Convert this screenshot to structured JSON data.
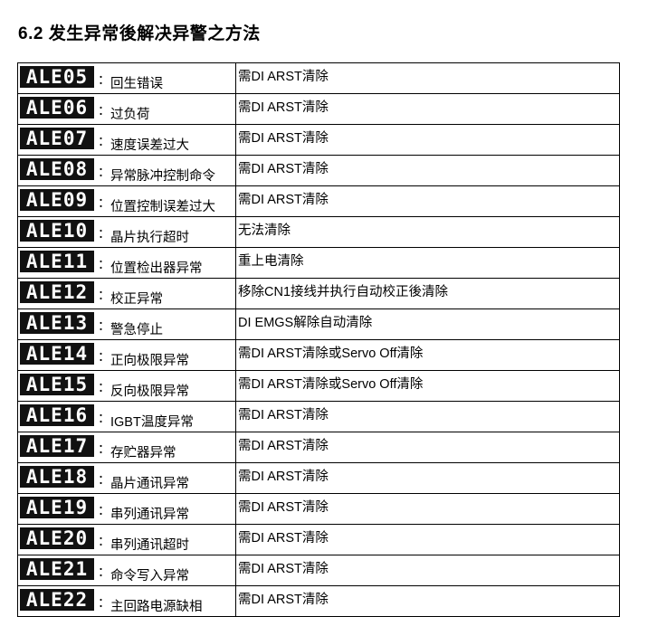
{
  "title": "6.2 发生异常後解决异警之方法",
  "rows": [
    {
      "code": "ALE05",
      "desc": "回生错误",
      "action": "需DI ARST清除"
    },
    {
      "code": "ALE06",
      "desc": "过负荷",
      "action": "需DI ARST清除"
    },
    {
      "code": "ALE07",
      "desc": "速度误差过大",
      "action": "需DI ARST清除"
    },
    {
      "code": "ALE08",
      "desc": "异常脉冲控制命令",
      "action": "需DI ARST清除"
    },
    {
      "code": "ALE09",
      "desc": "位置控制误差过大",
      "action": "需DI ARST清除"
    },
    {
      "code": "ALE10",
      "desc": "晶片执行超时",
      "action": "无法清除"
    },
    {
      "code": "ALE11",
      "desc": "位置检出器异常",
      "action": "重上电清除"
    },
    {
      "code": "ALE12",
      "desc": "校正异常",
      "action": "移除CN1接线并执行自动校正後清除"
    },
    {
      "code": "ALE13",
      "desc": "警急停止",
      "action": "DI EMGS解除自动清除"
    },
    {
      "code": "ALE14",
      "desc": "正向极限异常",
      "action": "需DI ARST清除或Servo Off清除"
    },
    {
      "code": "ALE15",
      "desc": "反向极限异常",
      "action": "需DI ARST清除或Servo Off清除"
    },
    {
      "code": "ALE16",
      "desc": "IGBT温度异常",
      "action": "需DI ARST清除"
    },
    {
      "code": "ALE17",
      "desc": "存贮器异常",
      "action": "需DI ARST清除"
    },
    {
      "code": "ALE18",
      "desc": "晶片通讯异常",
      "action": "需DI ARST清除"
    },
    {
      "code": "ALE19",
      "desc": "串列通讯异常",
      "action": "需DI ARST清除"
    },
    {
      "code": "ALE20",
      "desc": "串列通讯超时",
      "action": "需DI ARST清除"
    },
    {
      "code": "ALE21",
      "desc": "命令写入异常",
      "action": "需DI ARST清除"
    },
    {
      "code": "ALE22",
      "desc": "主回路电源缺相",
      "action": "需DI ARST清除"
    }
  ],
  "separator": "："
}
